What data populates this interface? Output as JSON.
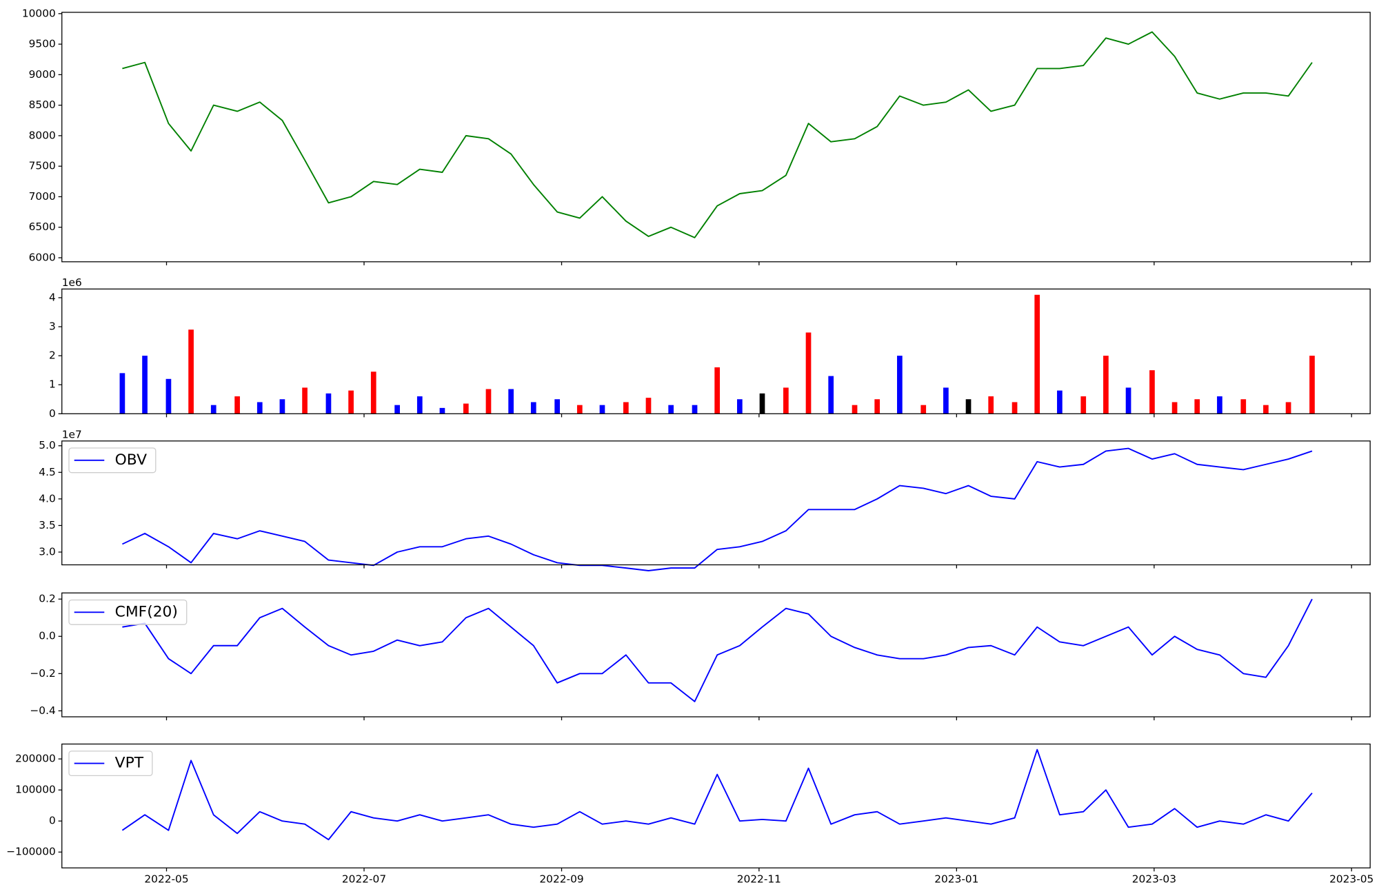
{
  "chart_data": [
    {
      "type": "line",
      "color": "#008000",
      "x": [
        2022.296,
        2022.315,
        2022.335,
        2022.354,
        2022.373,
        2022.393,
        2022.412,
        2022.431,
        2022.45,
        2022.47,
        2022.489,
        2022.508,
        2022.528,
        2022.547,
        2022.566,
        2022.586,
        2022.605,
        2022.624,
        2022.643,
        2022.663,
        2022.682,
        2022.701,
        2022.721,
        2022.74,
        2022.759,
        2022.779,
        2022.798,
        2022.817,
        2022.836,
        2022.856,
        2022.875,
        2022.894,
        2022.914,
        2022.933,
        2022.952,
        2022.972,
        2022.991,
        2023.01,
        2023.029,
        2023.049,
        2023.068,
        2023.087,
        2023.107,
        2023.126,
        2023.145,
        2023.165,
        2023.184,
        2023.203,
        2023.222,
        2023.242,
        2023.261,
        2023.28,
        2023.3
      ],
      "values": [
        9100,
        9200,
        8200,
        7750,
        8500,
        8400,
        8550,
        8250,
        7600,
        6900,
        7000,
        7250,
        7200,
        7450,
        7400,
        8000,
        7950,
        7700,
        7200,
        6750,
        6650,
        7000,
        6600,
        6350,
        6500,
        6330,
        6850,
        7050,
        7100,
        7350,
        8200,
        7900,
        7950,
        8150,
        8650,
        8500,
        8550,
        8750,
        8400,
        8500,
        9100,
        9100,
        9150,
        9600,
        9500,
        9700,
        9300,
        8700,
        8600,
        8700,
        8700,
        8650,
        9200
      ],
      "ylim": [
        5934,
        10022
      ],
      "yticks": [
        6000,
        6500,
        7000,
        7500,
        8000,
        8500,
        9000,
        9500,
        10000
      ]
    },
    {
      "type": "bar",
      "y_offset_label": "1e6",
      "x": [
        2022.296,
        2022.315,
        2022.335,
        2022.354,
        2022.373,
        2022.393,
        2022.412,
        2022.431,
        2022.45,
        2022.47,
        2022.489,
        2022.508,
        2022.528,
        2022.547,
        2022.566,
        2022.586,
        2022.605,
        2022.624,
        2022.643,
        2022.663,
        2022.682,
        2022.701,
        2022.721,
        2022.74,
        2022.759,
        2022.779,
        2022.798,
        2022.817,
        2022.836,
        2022.856,
        2022.875,
        2022.894,
        2022.914,
        2022.933,
        2022.952,
        2022.972,
        2022.991,
        2023.01,
        2023.029,
        2023.049,
        2023.068,
        2023.087,
        2023.107,
        2023.126,
        2023.145,
        2023.165,
        2023.184,
        2023.203,
        2023.222,
        2023.242,
        2023.261,
        2023.28,
        2023.3
      ],
      "values": [
        1.4,
        2.0,
        1.2,
        2.9,
        0.3,
        0.6,
        0.4,
        0.5,
        0.9,
        0.7,
        0.8,
        1.45,
        0.3,
        0.6,
        0.2,
        0.35,
        0.85,
        0.85,
        0.4,
        0.5,
        0.3,
        0.3,
        0.4,
        0.55,
        0.3,
        0.3,
        1.6,
        0.5,
        0.7,
        0.9,
        2.8,
        1.3,
        0.3,
        0.5,
        2.0,
        0.3,
        0.9,
        0.5,
        0.6,
        0.4,
        4.1,
        0.8,
        0.6,
        2.0,
        0.9,
        1.5,
        0.4,
        0.5,
        0.6,
        0.5,
        0.3,
        0.4,
        2.0
      ],
      "colors": [
        "#0000ff",
        "#0000ff",
        "#0000ff",
        "#ff0000",
        "#0000ff",
        "#ff0000",
        "#0000ff",
        "#0000ff",
        "#ff0000",
        "#0000ff",
        "#ff0000",
        "#ff0000",
        "#0000ff",
        "#0000ff",
        "#0000ff",
        "#ff0000",
        "#ff0000",
        "#0000ff",
        "#0000ff",
        "#0000ff",
        "#ff0000",
        "#0000ff",
        "#ff0000",
        "#ff0000",
        "#0000ff",
        "#0000ff",
        "#ff0000",
        "#0000ff",
        "#000000",
        "#ff0000",
        "#ff0000",
        "#0000ff",
        "#ff0000",
        "#ff0000",
        "#0000ff",
        "#ff0000",
        "#0000ff",
        "#000000",
        "#ff0000",
        "#ff0000",
        "#ff0000",
        "#0000ff",
        "#ff0000",
        "#ff0000",
        "#0000ff",
        "#ff0000",
        "#ff0000",
        "#ff0000",
        "#0000ff",
        "#ff0000",
        "#ff0000",
        "#ff0000",
        "#ff0000"
      ],
      "ylim": [
        0,
        4.3
      ],
      "yticks": [
        0,
        1,
        2,
        3,
        4
      ]
    },
    {
      "type": "line",
      "y_offset_label": "1e7",
      "legend": "upper left",
      "x": [
        2022.296,
        2022.315,
        2022.335,
        2022.354,
        2022.373,
        2022.393,
        2022.412,
        2022.431,
        2022.45,
        2022.47,
        2022.489,
        2022.508,
        2022.528,
        2022.547,
        2022.566,
        2022.586,
        2022.605,
        2022.624,
        2022.643,
        2022.663,
        2022.682,
        2022.701,
        2022.721,
        2022.74,
        2022.759,
        2022.779,
        2022.798,
        2022.817,
        2022.836,
        2022.856,
        2022.875,
        2022.894,
        2022.914,
        2022.933,
        2022.952,
        2022.972,
        2022.991,
        2023.01,
        2023.029,
        2023.049,
        2023.068,
        2023.087,
        2023.107,
        2023.126,
        2023.145,
        2023.165,
        2023.184,
        2023.203,
        2023.222,
        2023.242,
        2023.261,
        2023.28,
        2023.3
      ],
      "series": [
        {
          "name": "OBV",
          "color": "#0000ff",
          "values": [
            3.15,
            3.35,
            3.1,
            2.8,
            3.35,
            3.25,
            3.4,
            3.3,
            3.2,
            2.85,
            2.8,
            2.75,
            3.0,
            3.1,
            3.1,
            3.25,
            3.3,
            3.15,
            2.95,
            2.8,
            2.75,
            2.75,
            2.7,
            2.65,
            2.7,
            2.7,
            3.05,
            3.1,
            3.2,
            3.4,
            3.8,
            3.8,
            3.8,
            4.0,
            4.25,
            4.2,
            4.1,
            4.25,
            4.05,
            4.0,
            4.7,
            4.6,
            4.65,
            4.9,
            4.95,
            4.75,
            4.85,
            4.65,
            4.6,
            4.55,
            4.65,
            4.75,
            4.9
          ]
        }
      ],
      "ylim": [
        2.76,
        5.09
      ],
      "yticks": [
        {
          "value": 3,
          "label": "3.0"
        },
        3.5,
        {
          "value": 4,
          "label": "4.0"
        },
        4.5,
        {
          "value": 5,
          "label": "5.0"
        }
      ]
    },
    {
      "type": "line",
      "legend": "upper left",
      "x": [
        2022.296,
        2022.315,
        2022.335,
        2022.354,
        2022.373,
        2022.393,
        2022.412,
        2022.431,
        2022.45,
        2022.47,
        2022.489,
        2022.508,
        2022.528,
        2022.547,
        2022.566,
        2022.586,
        2022.605,
        2022.624,
        2022.643,
        2022.663,
        2022.682,
        2022.701,
        2022.721,
        2022.74,
        2022.759,
        2022.779,
        2022.798,
        2022.817,
        2022.836,
        2022.856,
        2022.875,
        2022.894,
        2022.914,
        2022.933,
        2022.952,
        2022.972,
        2022.991,
        2023.01,
        2023.029,
        2023.049,
        2023.068,
        2023.087,
        2023.107,
        2023.126,
        2023.145,
        2023.165,
        2023.184,
        2023.203,
        2023.222,
        2023.242,
        2023.261,
        2023.28,
        2023.3
      ],
      "series": [
        {
          "name": "CMF(20)",
          "color": "#0000ff",
          "values": [
            0.05,
            0.07,
            -0.12,
            -0.2,
            -0.05,
            -0.05,
            0.1,
            0.15,
            0.05,
            -0.05,
            -0.1,
            -0.08,
            -0.02,
            -0.05,
            -0.03,
            0.1,
            0.15,
            0.05,
            -0.05,
            -0.25,
            -0.2,
            -0.2,
            -0.1,
            -0.25,
            -0.25,
            -0.35,
            -0.1,
            -0.05,
            0.05,
            0.15,
            0.12,
            0.0,
            -0.06,
            -0.1,
            -0.12,
            -0.12,
            -0.1,
            -0.06,
            -0.05,
            -0.1,
            0.05,
            -0.03,
            -0.05,
            0.0,
            0.05,
            -0.1,
            0.0,
            -0.07,
            -0.1,
            -0.2,
            -0.22,
            -0.05,
            0.2
          ]
        }
      ],
      "ylim": [
        -0.432,
        0.233
      ],
      "yticks": [
        {
          "value": -0.4,
          "label": "−0.4"
        },
        {
          "value": -0.2,
          "label": "−0.2"
        },
        {
          "value": 0,
          "label": "0.0"
        },
        0.2
      ]
    },
    {
      "type": "line",
      "legend": "upper left",
      "x": [
        2022.296,
        2022.315,
        2022.335,
        2022.354,
        2022.373,
        2022.393,
        2022.412,
        2022.431,
        2022.45,
        2022.47,
        2022.489,
        2022.508,
        2022.528,
        2022.547,
        2022.566,
        2022.586,
        2022.605,
        2022.624,
        2022.643,
        2022.663,
        2022.682,
        2022.701,
        2022.721,
        2022.74,
        2022.759,
        2022.779,
        2022.798,
        2022.817,
        2022.836,
        2022.856,
        2022.875,
        2022.894,
        2022.914,
        2022.933,
        2022.952,
        2022.972,
        2022.991,
        2023.01,
        2023.029,
        2023.049,
        2023.068,
        2023.087,
        2023.107,
        2023.126,
        2023.145,
        2023.165,
        2023.184,
        2023.203,
        2023.222,
        2023.242,
        2023.261,
        2023.28,
        2023.3
      ],
      "series": [
        {
          "name": "VPT",
          "color": "#0000ff",
          "values": [
            -30000,
            20000,
            -30000,
            195000,
            20000,
            -40000,
            30000,
            0,
            -10000,
            -60000,
            30000,
            10000,
            0,
            20000,
            0,
            10000,
            20000,
            -10000,
            -20000,
            -10000,
            30000,
            -10000,
            0,
            -10000,
            10000,
            -10000,
            150000,
            0,
            5000,
            0,
            170000,
            -10000,
            20000,
            30000,
            -10000,
            0,
            10000,
            0,
            -10000,
            10000,
            230000,
            20000,
            30000,
            100000,
            -20000,
            -10000,
            40000,
            -20000,
            0,
            -10000,
            20000,
            0,
            90000
          ]
        }
      ],
      "ylim": [
        -151000,
        248000
      ],
      "yticks": [
        {
          "value": -100000,
          "label": "−100000"
        },
        0,
        100000,
        200000
      ],
      "xlim": [
        2022.245,
        2023.349
      ],
      "xticks": [
        {
          "value": 2022.3333,
          "label": "2022-05"
        },
        {
          "value": 2022.5,
          "label": "2022-07"
        },
        {
          "value": 2022.6667,
          "label": "2022-09"
        },
        {
          "value": 2022.8333,
          "label": "2022-11"
        },
        {
          "value": 2023.0,
          "label": "2023-01"
        },
        {
          "value": 2023.1667,
          "label": "2023-03"
        },
        {
          "value": 2023.3333,
          "label": "2023-05"
        }
      ]
    }
  ]
}
